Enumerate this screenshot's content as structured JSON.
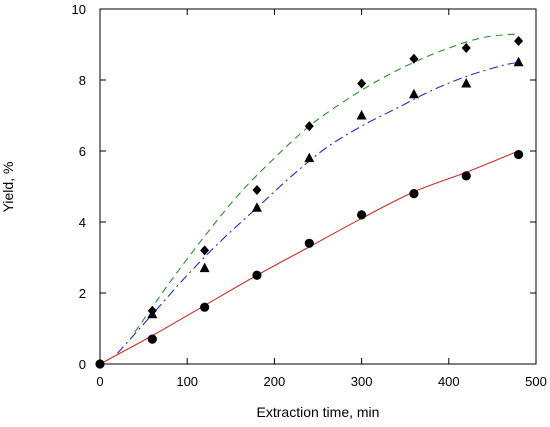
{
  "chart_data": {
    "type": "scatter",
    "xlabel": "Extraction time, min",
    "ylabel": "Yield, %",
    "xlim": [
      0,
      500
    ],
    "ylim": [
      0,
      10
    ],
    "xticks": [
      0,
      100,
      200,
      300,
      400,
      500
    ],
    "yticks": [
      0,
      2,
      4,
      6,
      8,
      10
    ],
    "grid": false,
    "series": [
      {
        "marker": "diamond",
        "x": [
          60,
          120,
          180,
          240,
          300,
          360,
          420,
          480
        ],
        "y": [
          1.5,
          3.2,
          4.9,
          6.7,
          7.9,
          8.6,
          8.9,
          9.1
        ],
        "fit": {
          "style": "dashed",
          "color": "#2e8b2e",
          "x": [
            40,
            60,
            80,
            120,
            160,
            200,
            240,
            280,
            320,
            360,
            400,
            440,
            480
          ],
          "y": [
            0.9,
            1.6,
            2.3,
            3.6,
            4.8,
            5.8,
            6.7,
            7.4,
            8.0,
            8.5,
            8.9,
            9.2,
            9.3
          ]
        }
      },
      {
        "marker": "triangle",
        "x": [
          60,
          120,
          180,
          240,
          300,
          360,
          420,
          480
        ],
        "y": [
          1.4,
          2.7,
          4.4,
          5.8,
          7.0,
          7.6,
          7.9,
          8.5
        ],
        "fit": {
          "style": "dash-dot",
          "color": "#2b2bcc",
          "x": [
            20,
            60,
            100,
            140,
            180,
            220,
            260,
            300,
            340,
            380,
            420,
            460,
            480
          ],
          "y": [
            0.3,
            1.4,
            2.5,
            3.5,
            4.4,
            5.3,
            6.1,
            6.7,
            7.2,
            7.7,
            8.1,
            8.4,
            8.5
          ]
        }
      },
      {
        "marker": "circle",
        "x": [
          0,
          60,
          120,
          180,
          240,
          300,
          360,
          420,
          480
        ],
        "y": [
          0,
          0.7,
          1.6,
          2.5,
          3.4,
          4.2,
          4.8,
          5.3,
          5.9
        ],
        "fit": {
          "style": "solid",
          "color": "#cc2b2b",
          "x": [
            0,
            60,
            120,
            180,
            240,
            300,
            360,
            420,
            480
          ],
          "y": [
            0,
            0.8,
            1.65,
            2.5,
            3.3,
            4.1,
            4.85,
            5.4,
            6.0
          ]
        }
      }
    ]
  }
}
